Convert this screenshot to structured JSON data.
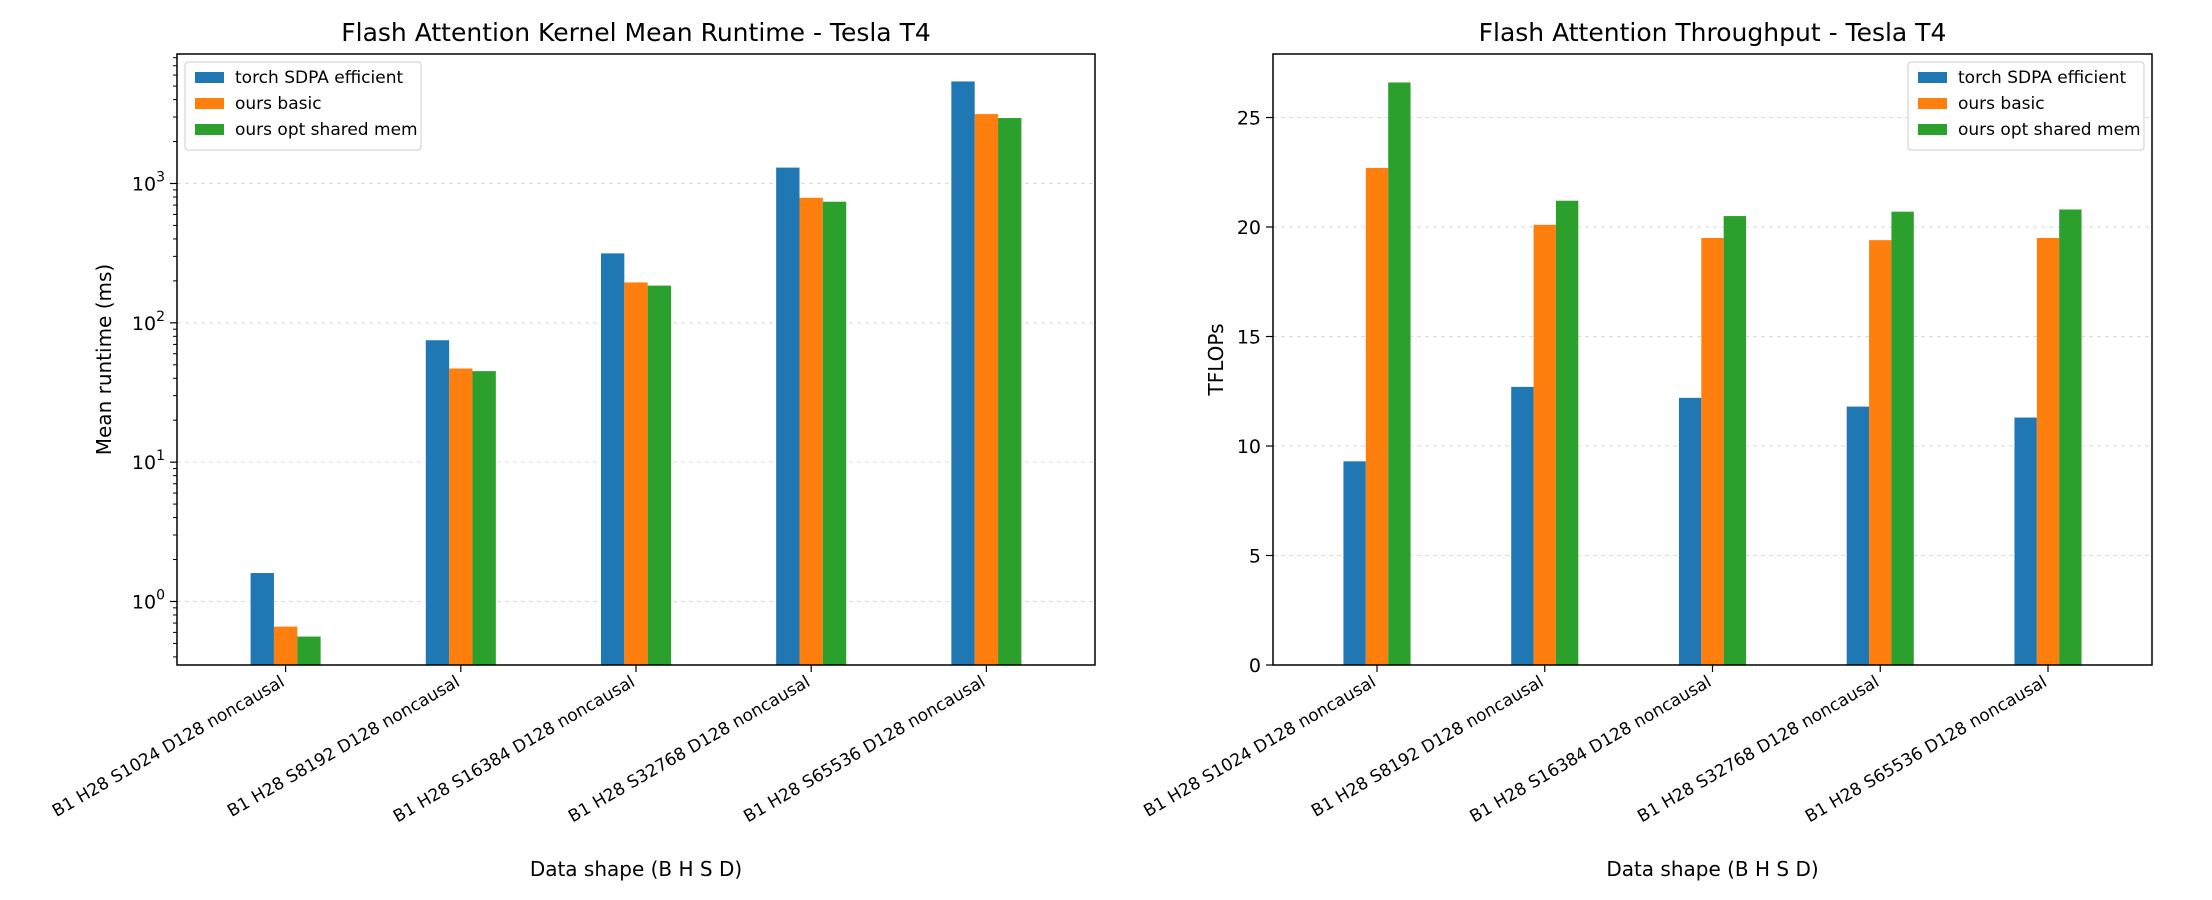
{
  "chart_data": [
    {
      "type": "bar",
      "title": "Flash Attention Kernel Mean Runtime - Tesla T4",
      "xlabel": "Data shape (B H S D)",
      "ylabel": "Mean runtime (ms)",
      "yscale": "log",
      "ylim": [
        0.35,
        8500
      ],
      "yticks": [
        {
          "value": 1,
          "base": "10",
          "exp": "0"
        },
        {
          "value": 10,
          "base": "10",
          "exp": "1"
        },
        {
          "value": 100,
          "base": "10",
          "exp": "2"
        },
        {
          "value": 1000,
          "base": "10",
          "exp": "3"
        }
      ],
      "grid": "horizontal dashed",
      "legend_position": "upper-left",
      "categories": [
        "B1 H28 S1024 D128 noncausal",
        "B1 H28 S8192 D128 noncausal",
        "B1 H28 S16384 D128 noncausal",
        "B1 H28 S32768 D128 noncausal",
        "B1 H28 S65536 D128 noncausal"
      ],
      "series": [
        {
          "name": "torch SDPA efficient",
          "color": "#1f77b4",
          "values": [
            1.6,
            75,
            315,
            1300,
            5400
          ]
        },
        {
          "name": "ours basic",
          "color": "#ff7f0e",
          "values": [
            0.66,
            47,
            195,
            790,
            3150
          ]
        },
        {
          "name": "ours opt shared mem",
          "color": "#2ca02c",
          "values": [
            0.56,
            45,
            185,
            740,
            2950
          ]
        }
      ]
    },
    {
      "type": "bar",
      "title": "Flash Attention Throughput - Tesla T4",
      "xlabel": "Data shape (B H S D)",
      "ylabel": "TFLOPs",
      "yscale": "linear",
      "ylim": [
        0,
        27.9
      ],
      "yticks": [
        0,
        5,
        10,
        15,
        20,
        25
      ],
      "grid": "horizontal dashed",
      "legend_position": "upper-right",
      "categories": [
        "B1 H28 S1024 D128 noncausal",
        "B1 H28 S8192 D128 noncausal",
        "B1 H28 S16384 D128 noncausal",
        "B1 H28 S32768 D128 noncausal",
        "B1 H28 S65536 D128 noncausal"
      ],
      "series": [
        {
          "name": "torch SDPA efficient",
          "color": "#1f77b4",
          "values": [
            9.3,
            12.7,
            12.2,
            11.8,
            11.3
          ]
        },
        {
          "name": "ours basic",
          "color": "#ff7f0e",
          "values": [
            22.7,
            20.1,
            19.5,
            19.4,
            19.5
          ]
        },
        {
          "name": "ours opt shared mem",
          "color": "#2ca02c",
          "values": [
            26.6,
            21.2,
            20.5,
            20.7,
            20.8
          ]
        }
      ]
    }
  ]
}
